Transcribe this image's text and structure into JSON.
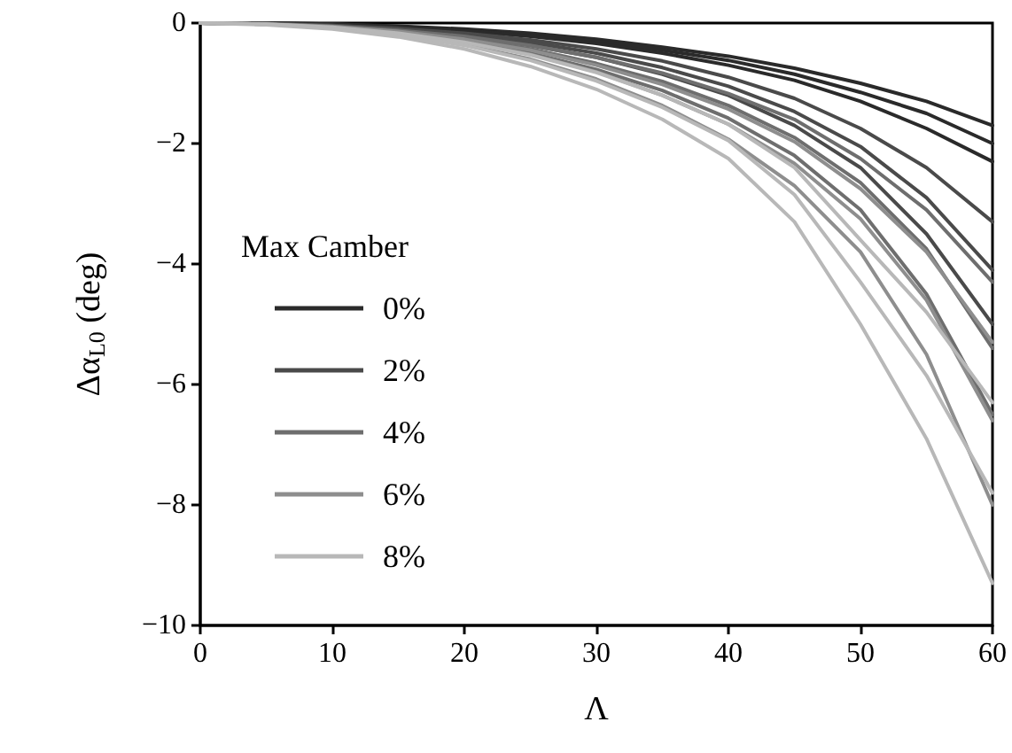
{
  "chart_data": {
    "type": "line",
    "xlabel": "Λ",
    "ylabel": "Δα$_{L0}$ (deg)",
    "legend_title": "Max Camber",
    "x": [
      0,
      5,
      10,
      15,
      20,
      25,
      30,
      35,
      40,
      45,
      50,
      55,
      60
    ],
    "series": [
      {
        "name": "0%",
        "color": "#2a2a2a",
        "values": [
          0,
          0,
          -0.02,
          -0.05,
          -0.1,
          -0.17,
          -0.27,
          -0.4,
          -0.55,
          -0.75,
          -1.0,
          -1.3,
          -1.7
        ]
      },
      {
        "color": "#2a2a2a",
        "values": [
          0,
          0,
          -0.02,
          -0.06,
          -0.12,
          -0.2,
          -0.3,
          -0.45,
          -0.62,
          -0.85,
          -1.15,
          -1.5,
          -2.0
        ]
      },
      {
        "color": "#2a2a2a",
        "values": [
          0,
          0,
          -0.03,
          -0.07,
          -0.13,
          -0.22,
          -0.34,
          -0.5,
          -0.7,
          -0.95,
          -1.3,
          -1.75,
          -2.3
        ]
      },
      {
        "name": "2%",
        "color": "#4a4a4a",
        "values": [
          0,
          -0.01,
          -0.04,
          -0.09,
          -0.17,
          -0.28,
          -0.43,
          -0.63,
          -0.9,
          -1.25,
          -1.75,
          -2.4,
          -3.3
        ]
      },
      {
        "color": "#4a4a4a",
        "values": [
          0,
          -0.01,
          -0.04,
          -0.1,
          -0.2,
          -0.32,
          -0.5,
          -0.74,
          -1.05,
          -1.47,
          -2.05,
          -2.9,
          -4.1
        ]
      },
      {
        "color": "#4a4a4a",
        "values": [
          0,
          -0.01,
          -0.05,
          -0.12,
          -0.22,
          -0.37,
          -0.57,
          -0.85,
          -1.2,
          -1.7,
          -2.4,
          -3.5,
          -5.0
        ]
      },
      {
        "name": "4%",
        "color": "#6e6e6e",
        "values": [
          0,
          -0.01,
          -0.05,
          -0.12,
          -0.22,
          -0.37,
          -0.57,
          -0.83,
          -1.17,
          -1.6,
          -2.25,
          -3.1,
          -4.3
        ]
      },
      {
        "color": "#6e6e6e",
        "values": [
          0,
          -0.02,
          -0.06,
          -0.14,
          -0.26,
          -0.43,
          -0.67,
          -0.97,
          -1.37,
          -1.9,
          -2.65,
          -3.75,
          -5.4
        ]
      },
      {
        "color": "#6e6e6e",
        "values": [
          0,
          -0.02,
          -0.07,
          -0.16,
          -0.3,
          -0.5,
          -0.77,
          -1.12,
          -1.58,
          -2.2,
          -3.1,
          -4.5,
          -6.5
        ]
      },
      {
        "name": "6%",
        "color": "#8e8e8e",
        "values": [
          0,
          -0.02,
          -0.06,
          -0.14,
          -0.27,
          -0.45,
          -0.7,
          -1.02,
          -1.43,
          -1.97,
          -2.75,
          -3.8,
          -5.3
        ]
      },
      {
        "color": "#8e8e8e",
        "values": [
          0,
          -0.02,
          -0.07,
          -0.17,
          -0.31,
          -0.52,
          -0.81,
          -1.2,
          -1.68,
          -2.33,
          -3.25,
          -4.6,
          -6.6
        ]
      },
      {
        "color": "#8e8e8e",
        "values": [
          0,
          -0.02,
          -0.08,
          -0.19,
          -0.36,
          -0.6,
          -0.93,
          -1.37,
          -1.93,
          -2.7,
          -3.8,
          -5.5,
          -8.0
        ]
      },
      {
        "name": "8%",
        "color": "#b8b8b8",
        "values": [
          0,
          -0.02,
          -0.07,
          -0.17,
          -0.32,
          -0.53,
          -0.82,
          -1.2,
          -1.68,
          -2.4,
          -3.6,
          -4.8,
          -6.3
        ]
      },
      {
        "color": "#b8b8b8",
        "values": [
          0,
          -0.02,
          -0.08,
          -0.2,
          -0.37,
          -0.62,
          -0.96,
          -1.4,
          -1.95,
          -2.85,
          -4.3,
          -5.85,
          -7.8
        ]
      },
      {
        "color": "#b8b8b8",
        "values": [
          0,
          -0.03,
          -0.1,
          -0.23,
          -0.43,
          -0.72,
          -1.1,
          -1.6,
          -2.25,
          -3.3,
          -5.0,
          -6.9,
          -9.3
        ]
      }
    ],
    "xlim": [
      0,
      60
    ],
    "xticks": [
      0,
      10,
      20,
      30,
      40,
      50,
      60
    ],
    "ylim": [
      -10,
      0
    ],
    "yticks": [
      {
        "value": -10,
        "label": "−10"
      },
      {
        "value": -8,
        "label": "−8"
      },
      {
        "value": -6,
        "label": "−6"
      },
      {
        "value": -4,
        "label": "−4"
      },
      {
        "value": -2,
        "label": "−2"
      },
      0
    ],
    "grid": false,
    "legend": "left",
    "marker": "none",
    "line_style": "solid"
  }
}
